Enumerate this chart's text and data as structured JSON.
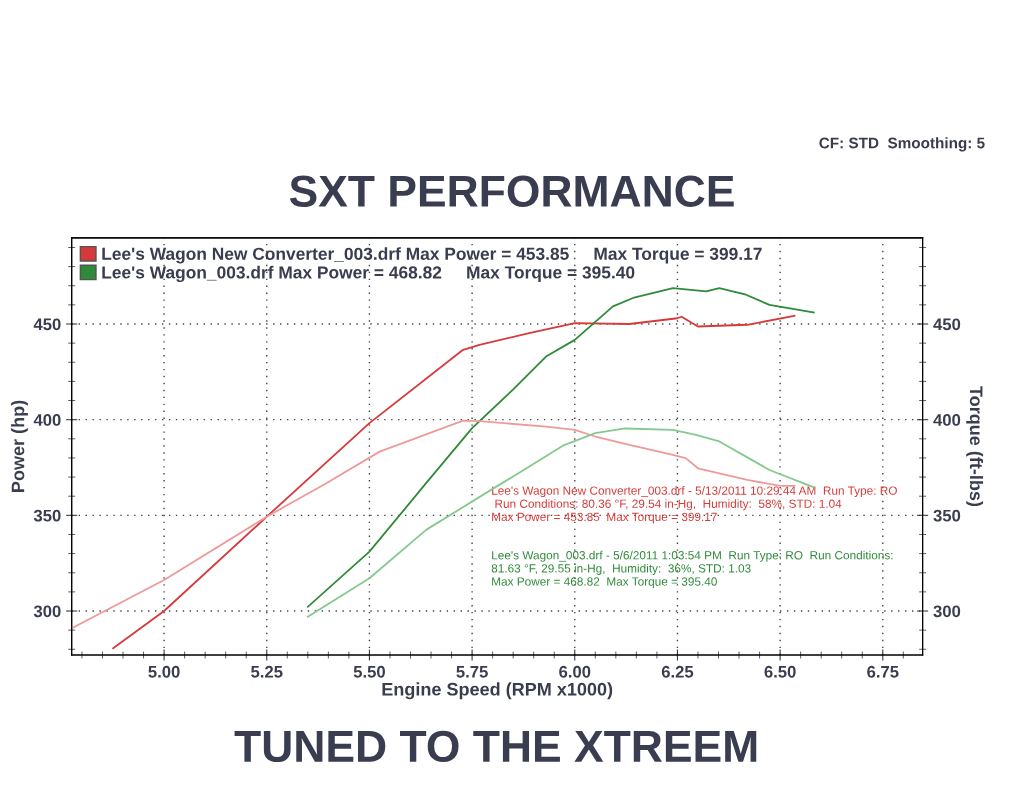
{
  "chart_data": {
    "type": "line",
    "title": "SXT PERFORMANCE",
    "xlabel": "Engine Speed (RPM x1000)",
    "ylabel": "Power (hp)",
    "y2label": "Torque (ft-lbs)",
    "annotations": [
      "CF: STD  Smoothing: 5",
      "TUNED TO THE XTREEM",
      "Lee's Wagon New Converter_003.drf - 5/13/2011 10:29:44 AM  Run Type: RO\n Run Conditions: 80.36 °F, 29.54 in-Hg,  Humidity:  58%, STD: 1.04\nMax Power = 453.85  Max Torque = 399.17",
      "Lee's Wagon_003.drf - 5/6/2011 1:03:54 PM  Run Type: RO  Run Conditions:\n81.63 °F, 29.55 in-Hg,  Humidity:  36%, STD: 1.03\nMax Power = 468.82  Max Torque = 395.40"
    ],
    "xlim": [
      4.775,
      6.847
    ],
    "ylim": [
      277,
      495
    ],
    "y2lim": [
      277,
      495
    ],
    "xticks": [
      {
        "value": 5,
        "label": "5.00"
      },
      {
        "value": 5.25,
        "label": "5.25"
      },
      {
        "value": 5.5,
        "label": "5.50"
      },
      {
        "value": 5.75,
        "label": "5.75"
      },
      {
        "value": 6,
        "label": "6.00"
      },
      {
        "value": 6.25,
        "label": "6.25"
      },
      {
        "value": 6.5,
        "label": "6.50"
      },
      {
        "value": 6.75,
        "label": "6.75"
      }
    ],
    "yticks": [
      300,
      350,
      400,
      450
    ],
    "y2ticks": [
      300,
      350,
      400,
      450
    ],
    "grid": true,
    "legend": "top left",
    "marker": "none",
    "line_style": "solid",
    "series": [
      {
        "name": "Lee's Wagon New Converter_003.drf Max Power = 453.85     Max Torque = 399.17",
        "color": "#d63a3a",
        "x": [
          4.876,
          5.0,
          5.25,
          5.5,
          5.728,
          5.768,
          5.889,
          6.0,
          6.133,
          6.25,
          6.26,
          6.3,
          6.42,
          6.535
        ],
        "values": [
          280.5,
          300,
          349.3,
          398.2,
          436.5,
          439.1,
          445.2,
          450.5,
          450,
          453,
          453.8,
          448.7,
          449.6,
          454.3
        ]
      },
      {
        "name": "Lee's Wagon_003.drf Max Power = 468.82     Max Torque = 395.40",
        "color": "#2f8a3a",
        "x": [
          5.35,
          5.5,
          5.638,
          5.75,
          5.849,
          5.93,
          6.0,
          6.093,
          6.142,
          6.239,
          6.32,
          6.352,
          6.417,
          6.474,
          6.582
        ],
        "values": [
          302.2,
          331,
          366.8,
          395.6,
          415.6,
          433,
          441.7,
          459.2,
          463.6,
          468.8,
          467,
          468.8,
          465.3,
          460,
          456
        ]
      },
      {
        "color": "#ee9a9a",
        "axis": "y2",
        "x": [
          4.775,
          5.0,
          5.25,
          5.395,
          5.525,
          5.728,
          5.768,
          5.93,
          6.0,
          6.05,
          6.133,
          6.239,
          6.27,
          6.3,
          6.42,
          6.5,
          6.535
        ],
        "values": [
          291,
          316.2,
          349.3,
          366.8,
          383.3,
          399.5,
          399.2,
          396.4,
          394.7,
          391.2,
          386.8,
          381.6,
          379.9,
          374.6,
          368.5,
          365.4,
          365.4
        ]
      },
      {
        "color": "#86c98e",
        "axis": "y2",
        "x": [
          5.35,
          5.5,
          5.638,
          5.809,
          5.849,
          5.971,
          6.05,
          6.122,
          6.239,
          6.295,
          6.352,
          6.417,
          6.474,
          6.582
        ],
        "values": [
          297,
          317.1,
          342.4,
          365,
          370.2,
          386.4,
          393,
          395.4,
          394.7,
          392.1,
          388.6,
          380.7,
          373.7,
          364.7
        ]
      }
    ]
  }
}
